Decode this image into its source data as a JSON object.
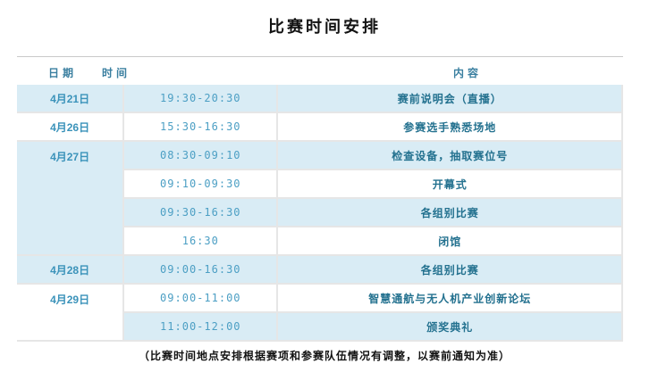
{
  "title": "比赛时间安排",
  "footer_note": "（比赛时间地点安排根据赛项和参赛队伍情况有调整，以赛前通知为准）",
  "colors": {
    "row_shade": "#d9ecf5",
    "border_gray": "#e6e6e6",
    "header_text": "#3a7fa0",
    "date_text": "#3b93ba",
    "time_text": "#4c9fc4",
    "content_text": "#23718f",
    "title_text": "#121212"
  },
  "table": {
    "headers": [
      {
        "label": "日期"
      },
      {
        "label": "时间"
      },
      {
        "label": "内容"
      }
    ],
    "rows": [
      {
        "date": "4月21日",
        "time": "19:30-20:30",
        "content": "赛前说明会（直播）"
      },
      {
        "date": "4月26日",
        "time": "15:30-16:30",
        "content": "参赛选手熟悉场地"
      },
      {
        "date": "4月27日",
        "date_rowspan": 4,
        "time": "08:30-09:10",
        "content": "检查设备，抽取赛位号"
      },
      {
        "time": "09:10-09:30",
        "content": "开幕式"
      },
      {
        "time": "09:30-16:30",
        "content": "各组别比赛"
      },
      {
        "time": "16:30",
        "content": "闭馆"
      },
      {
        "date": "4月28日",
        "time": "09:00-16:30",
        "content": "各组别比赛"
      },
      {
        "date": "4月29日",
        "date_rowspan": 2,
        "time": "09:00-11:00",
        "content": "智慧通航与无人机产业创新论坛"
      },
      {
        "time": "11:00-12:00",
        "content": "颁奖典礼"
      }
    ]
  }
}
